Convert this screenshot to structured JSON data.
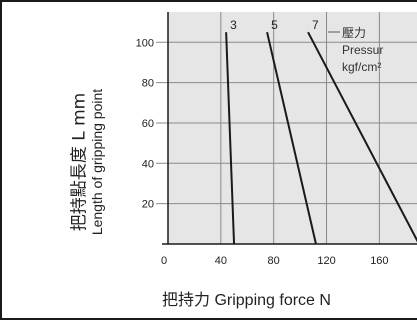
{
  "chart_data": {
    "type": "line",
    "title": "",
    "xlabel": "把持力 Gripping force N",
    "ylabel_cn": "把持點長度  L mm",
    "ylabel_en": "Length of gripping point",
    "x_ticks": [
      "0",
      "40",
      "80",
      "120",
      "160"
    ],
    "y_ticks": [
      "20",
      "40",
      "60",
      "80",
      "100"
    ],
    "xlim": [
      0,
      190
    ],
    "ylim": [
      0,
      115
    ],
    "grid": true,
    "legend": {
      "label_cn": "壓力",
      "label_en_1": "Pressur",
      "label_en_2": "kgf/cm²"
    },
    "series": [
      {
        "name": "3",
        "x": [
          44,
          50
        ],
        "y": [
          105,
          0
        ]
      },
      {
        "name": "5",
        "x": [
          75,
          112
        ],
        "y": [
          105,
          0
        ]
      },
      {
        "name": "7",
        "x": [
          106,
          190
        ],
        "y": [
          105,
          0
        ]
      }
    ],
    "colors": {
      "line": "#1a1a1a",
      "grid": "#8a8a8a",
      "plot_bg": "#e6e6e6"
    }
  }
}
